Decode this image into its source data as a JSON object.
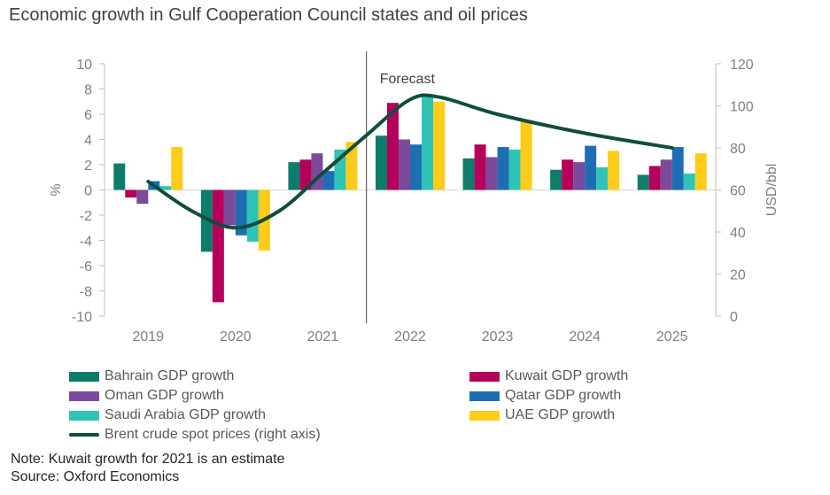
{
  "title": "Economic growth in Gulf Cooperation Council states and oil prices",
  "chart_data": {
    "type": "bar",
    "categories": [
      "2019",
      "2020",
      "2021",
      "2022",
      "2023",
      "2024",
      "2025"
    ],
    "ylabel": "%",
    "ylim": [
      -10,
      10
    ],
    "yticks": [
      -10,
      -8,
      -6,
      -4,
      -2,
      0,
      2,
      4,
      6,
      8,
      10
    ],
    "y2label": "USD/bbl",
    "y2lim": [
      0,
      120
    ],
    "y2ticks": [
      0,
      20,
      40,
      60,
      80,
      100,
      120
    ],
    "forecast_label": "Forecast",
    "forecast_start": "2022",
    "series": [
      {
        "name": "Bahrain GDP growth",
        "color": "#0E7C6B",
        "values": [
          2.1,
          -4.9,
          2.2,
          4.3,
          2.5,
          1.6,
          1.2
        ]
      },
      {
        "name": "Kuwait GDP growth",
        "color": "#B5005B",
        "values": [
          -0.6,
          -8.9,
          2.4,
          6.9,
          3.6,
          2.4,
          1.9
        ]
      },
      {
        "name": "Oman GDP growth",
        "color": "#7B4A9A",
        "values": [
          -1.1,
          -2.8,
          2.9,
          4.0,
          2.6,
          2.2,
          2.4
        ]
      },
      {
        "name": "Qatar GDP growth",
        "color": "#1F6EB4",
        "values": [
          0.7,
          -3.6,
          1.5,
          3.6,
          3.4,
          3.5,
          3.4
        ]
      },
      {
        "name": "Saudi Arabia GDP growth",
        "color": "#2EC4B6",
        "values": [
          0.3,
          -4.1,
          3.2,
          7.4,
          3.2,
          1.8,
          1.3
        ]
      },
      {
        "name": "UAE  GDP growth",
        "color": "#FFCC1A",
        "values": [
          3.4,
          -4.8,
          3.8,
          7.0,
          5.4,
          3.1,
          2.9
        ]
      }
    ],
    "line_series": {
      "name": "Brent crude spot prices (right axis)",
      "color": "#0F4D3C",
      "axis": "right",
      "points": [
        {
          "x": 0.0,
          "y": 64
        },
        {
          "x": 0.5,
          "y": 50
        },
        {
          "x": 1.0,
          "y": 42
        },
        {
          "x": 1.5,
          "y": 50
        },
        {
          "x": 2.0,
          "y": 68
        },
        {
          "x": 2.5,
          "y": 86
        },
        {
          "x": 3.0,
          "y": 103
        },
        {
          "x": 3.35,
          "y": 104
        },
        {
          "x": 4.0,
          "y": 96
        },
        {
          "x": 5.0,
          "y": 87
        },
        {
          "x": 6.0,
          "y": 80
        }
      ]
    }
  },
  "footnotes": {
    "note": "Note: Kuwait growth for 2021 is an estimate",
    "source": "Source: Oxford Economics"
  }
}
